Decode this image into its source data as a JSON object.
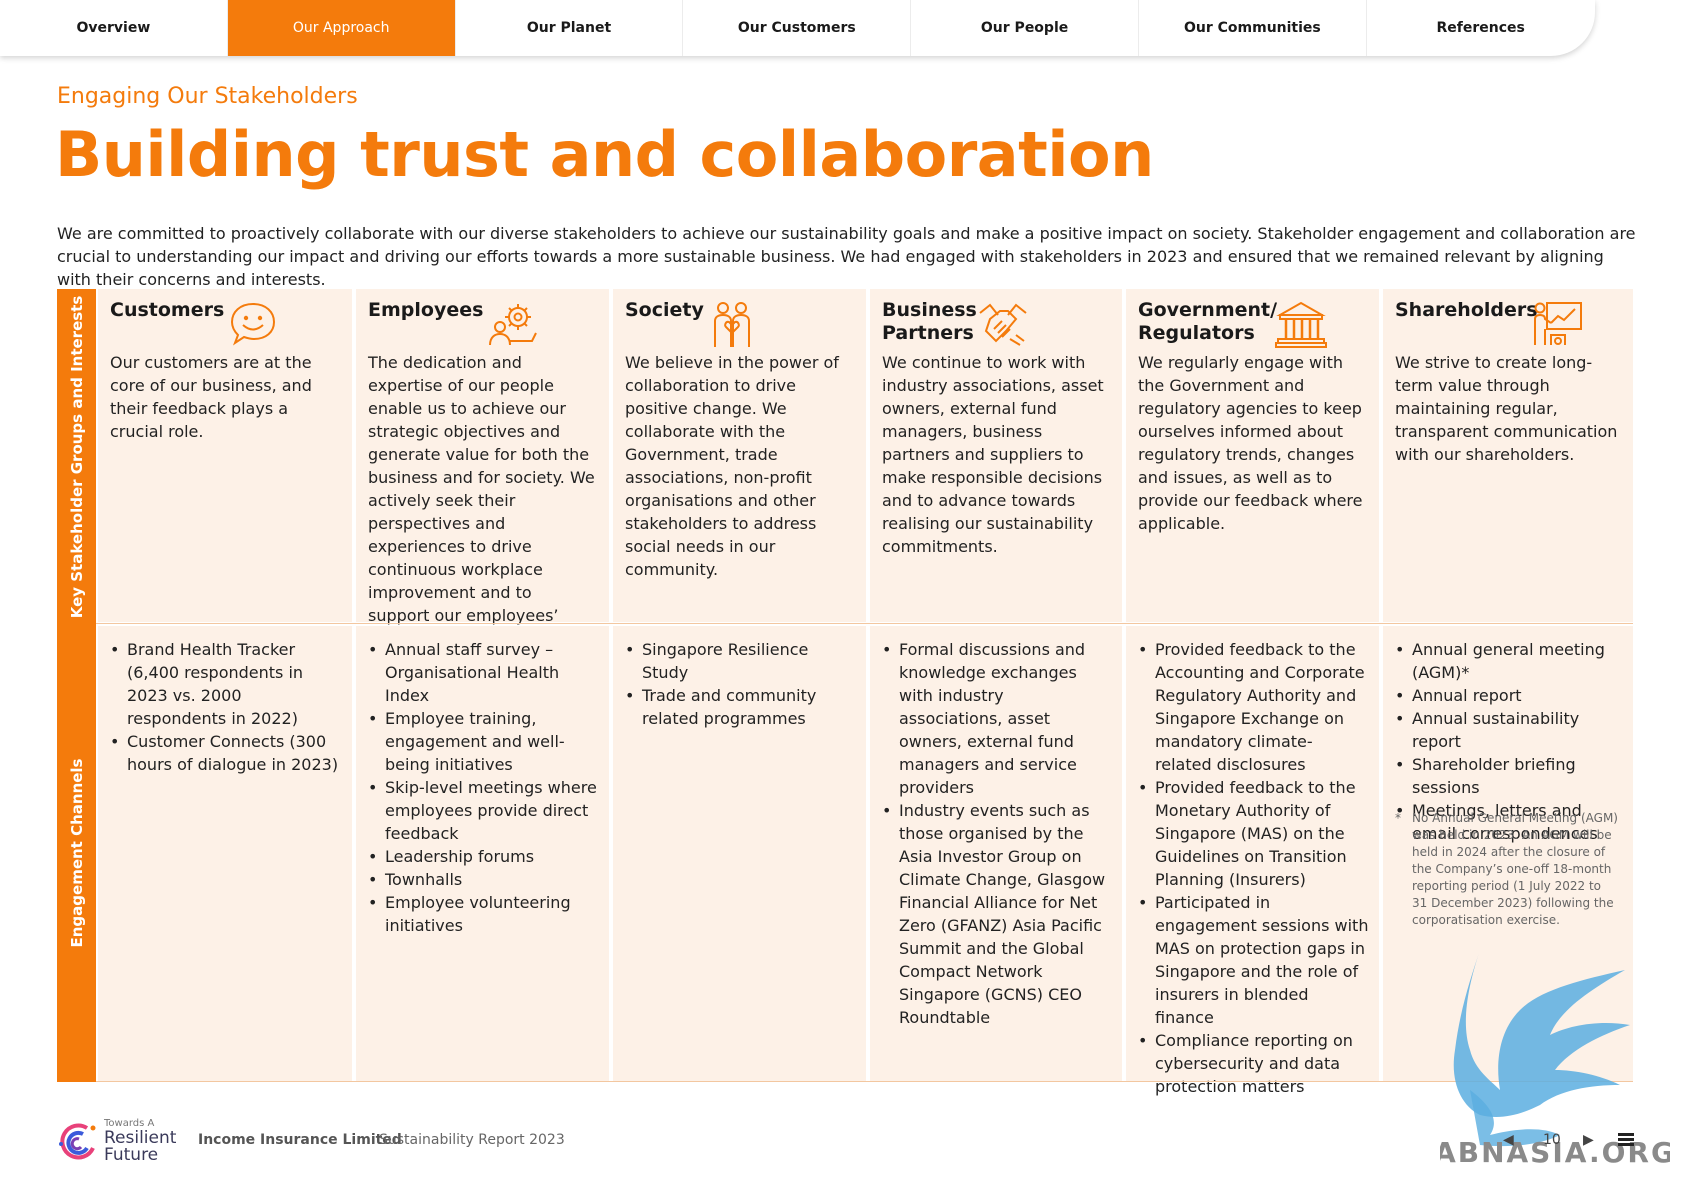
{
  "nav": {
    "tabs": [
      {
        "label": "Overview",
        "active": false
      },
      {
        "label": "Our Approach",
        "active": true
      },
      {
        "label": "Our Planet",
        "active": false
      },
      {
        "label": "Our Customers",
        "active": false
      },
      {
        "label": "Our People",
        "active": false
      },
      {
        "label": "Our Communities",
        "active": false
      },
      {
        "label": "References",
        "active": false
      }
    ]
  },
  "header": {
    "eyebrow": "Engaging Our Stakeholders",
    "title": "Building trust and collaboration",
    "intro": "We are committed to proactively collaborate with our diverse stakeholders to achieve our sustainability goals and make a positive impact on society. Stakeholder engagement and collaboration are crucial to understanding our impact and driving our efforts towards a more sustainable business. We had engaged with stakeholders in 2023 and ensured that we remained relevant by aligning with their concerns and interests."
  },
  "table": {
    "row_labels": {
      "top": "Key Stakeholder Groups and Interests",
      "bottom": "Engagement Channels"
    },
    "columns": [
      {
        "title": "Customers",
        "icon": "speech-bubble-smile-icon",
        "description": "Our customers are at the core of our business, and their feedback plays a crucial role.",
        "channels": [
          "Brand Health Tracker (6,400 respondents in 2023 vs. 2000 respondents in 2022)",
          "Customer Connects (300 hours of dialogue in 2023)"
        ]
      },
      {
        "title": "Employees",
        "icon": "people-gear-icon",
        "description": "The dedication and expertise of our people enable us to achieve our strategic objectives and generate value for both the business and for society. We actively seek their perspectives and experiences to drive continuous workplace improvement and to support our employees’ professional and personal growth.",
        "channels": [
          "Annual staff survey – Organisational Health Index",
          "Employee training, engagement and well-being initiatives",
          "Skip-level meetings where employees provide direct feedback",
          "Leadership forums",
          "Townhalls",
          "Employee volunteering initiatives"
        ]
      },
      {
        "title": "Society",
        "icon": "people-heart-icon",
        "description": "We believe in the power of collaboration to drive positive change. We collaborate with the Government, trade associations, non-profit organisations and other stakeholders to address social needs in our community.",
        "channels": [
          "Singapore Resilience Study",
          "Trade and community related programmes"
        ]
      },
      {
        "title": "Business Partners",
        "icon": "handshake-icon",
        "description": "We continue to work with industry associations, asset owners, external fund managers, business partners and suppliers to make responsible decisions and to advance towards realising our sustainability commitments.",
        "channels": [
          "Formal discussions and knowledge exchanges with industry associations, asset owners, external fund managers and service providers",
          "Industry events such as those organised by the Asia Investor Group on Climate Change, Glasgow Financial Alliance for Net Zero (GFANZ) Asia Pacific Summit and the Global Compact Network Singapore (GCNS) CEO Roundtable"
        ]
      },
      {
        "title": "Government/ Regulators",
        "icon": "government-building-icon",
        "description": "We regularly engage with the Government and regulatory agencies to keep ourselves informed about regulatory trends, changes and issues, as well as to provide our feedback where applicable.",
        "channels": [
          "Provided feedback to the Accounting and Corporate Regulatory Authority and Singapore Exchange on mandatory climate-related disclosures",
          "Provided feedback to the Monetary Authority of Singapore (MAS) on the Guidelines on Transition Planning (Insurers)",
          "Participated in engagement sessions with MAS on protection gaps in Singapore and the role of insurers in blended finance",
          "Compliance reporting on cybersecurity and data protection matters"
        ]
      },
      {
        "title": "Shareholders",
        "icon": "presentation-chart-icon",
        "description": "We strive to create long-term value through maintaining regular, transparent communication with our shareholders.",
        "channels": [
          "Annual general meeting (AGM)*",
          "Annual report",
          "Annual sustainability report",
          "Shareholder briefing sessions",
          "Meetings, letters and email correspondences"
        ],
        "footnote_mark": "*",
        "footnote": "No Annual General Meeting (AGM) was held in 2023. An AGM will be held in 2024 after the closure of the Company’s one-off 18-month reporting period (1 July 2022 to 31 December 2023) following the corporatisation exercise."
      }
    ]
  },
  "footer": {
    "logo_small": "Towards A",
    "logo_line1": "Resilient",
    "logo_line2": "Future",
    "brand": "Income Insurance Limited",
    "report": "Sustainability Report 2023",
    "page_number": "10",
    "prev_glyph": "◀",
    "next_glyph": "▶"
  },
  "watermark": {
    "text": "ABNASIA.ORG"
  },
  "colors": {
    "accent": "#f47b0c",
    "cell_bg": "#fdf1e7"
  }
}
